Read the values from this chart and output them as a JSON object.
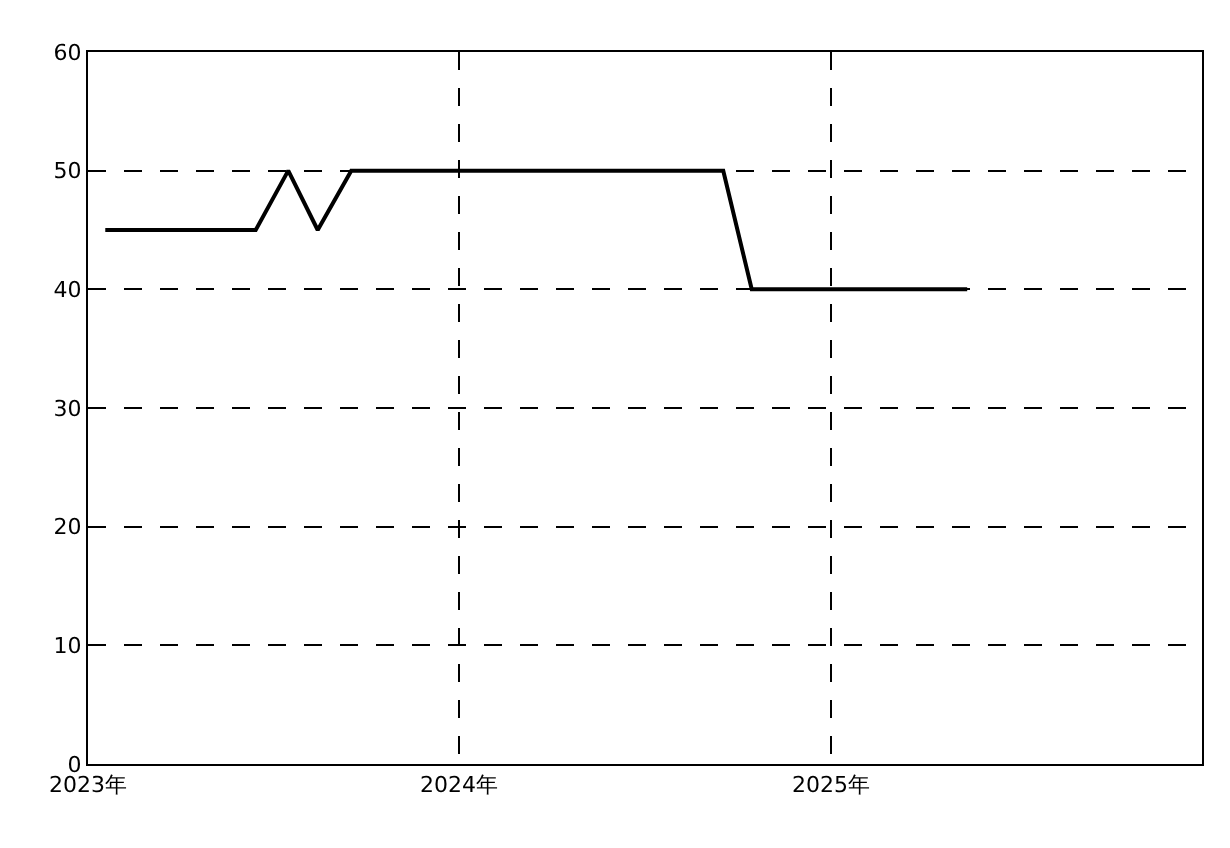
{
  "chart_data": {
    "type": "line",
    "x": [
      "2023-01-18",
      "2023-06-15",
      "2023-07-17",
      "2023-08-15",
      "2023-09-17",
      "2024-09-17",
      "2024-10-15",
      "2025-05-15"
    ],
    "series": [
      {
        "color": "#000000",
        "values": [
          45,
          45,
          50,
          45,
          50,
          50,
          40,
          40
        ]
      }
    ],
    "xlim": [
      "2023-01-01",
      "2026-01-01"
    ],
    "xticks": [
      {
        "value": "2023-01-01",
        "label": "2023年"
      },
      {
        "value": "2024-01-01",
        "label": "2024年"
      },
      {
        "value": "2025-01-01",
        "label": "2025年"
      }
    ],
    "ylim": [
      0,
      60
    ],
    "yticks": [
      0,
      10,
      20,
      30,
      40,
      50,
      60
    ],
    "grid": true,
    "line_style": "solid",
    "marker": "none"
  }
}
